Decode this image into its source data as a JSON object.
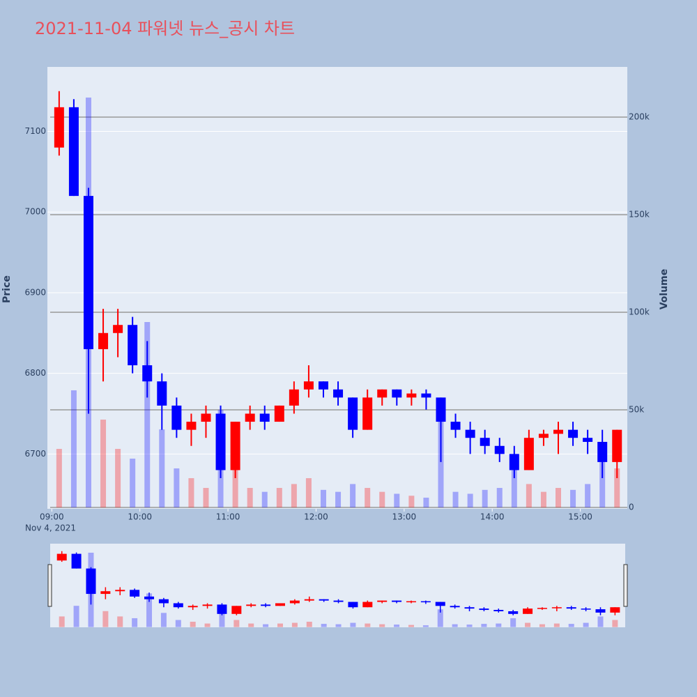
{
  "chart_data": {
    "type": "candlestick",
    "title": "2021-11-04 파워넷 뉴스_공시 차트",
    "y_title": "Price",
    "y2_title": "Volume",
    "x_date_label": "Nov 4, 2021",
    "increasing_color": "#ff0000",
    "decreasing_color": "#0000ff",
    "x": [
      "2021-11-04 09:00",
      "2021-11-04 09:10",
      "2021-11-04 09:20",
      "2021-11-04 09:30",
      "2021-11-04 09:40",
      "2021-11-04 09:50",
      "2021-11-04 10:00",
      "2021-11-04 10:10",
      "2021-11-04 10:20",
      "2021-11-04 10:30",
      "2021-11-04 10:40",
      "2021-11-04 10:50",
      "2021-11-04 11:00",
      "2021-11-04 11:10",
      "2021-11-04 11:20",
      "2021-11-04 11:30",
      "2021-11-04 11:40",
      "2021-11-04 11:50",
      "2021-11-04 12:00",
      "2021-11-04 12:10",
      "2021-11-04 12:20",
      "2021-11-04 12:30",
      "2021-11-04 12:40",
      "2021-11-04 12:50",
      "2021-11-04 13:00",
      "2021-11-04 13:10",
      "2021-11-04 13:20",
      "2021-11-04 13:30",
      "2021-11-04 13:40",
      "2021-11-04 13:50",
      "2021-11-04 14:00",
      "2021-11-04 14:10",
      "2021-11-04 14:20",
      "2021-11-04 14:30",
      "2021-11-04 14:40",
      "2021-11-04 14:50",
      "2021-11-04 15:00",
      "2021-11-04 15:10",
      "2021-11-04 15:20"
    ],
    "open": [
      7080,
      7130,
      7020,
      6830,
      6850,
      6860,
      6810,
      6790,
      6760,
      6730,
      6740,
      6750,
      6680,
      6740,
      6750,
      6740,
      6760,
      6780,
      6790,
      6780,
      6770,
      6730,
      6770,
      6780,
      6770,
      6775,
      6770,
      6740,
      6730,
      6720,
      6710,
      6700,
      6680,
      6720,
      6725,
      6730,
      6720,
      6715,
      6690
    ],
    "high": [
      7150,
      7140,
      7030,
      6880,
      6880,
      6870,
      6840,
      6800,
      6770,
      6750,
      6760,
      6760,
      6740,
      6760,
      6760,
      6760,
      6790,
      6810,
      6790,
      6790,
      6770,
      6780,
      6780,
      6780,
      6780,
      6780,
      6770,
      6750,
      6740,
      6730,
      6720,
      6710,
      6730,
      6730,
      6740,
      6740,
      6730,
      6730,
      6730
    ],
    "low": [
      7070,
      7020,
      6750,
      6790,
      6820,
      6800,
      6770,
      6730,
      6720,
      6710,
      6720,
      6670,
      6670,
      6730,
      6730,
      6740,
      6750,
      6770,
      6770,
      6760,
      6720,
      6730,
      6760,
      6760,
      6760,
      6755,
      6690,
      6720,
      6700,
      6700,
      6690,
      6670,
      6680,
      6710,
      6700,
      6710,
      6700,
      6670,
      6670
    ],
    "close": [
      7130,
      7020,
      6830,
      6850,
      6860,
      6810,
      6790,
      6760,
      6730,
      6740,
      6750,
      6680,
      6740,
      6750,
      6740,
      6760,
      6780,
      6790,
      6780,
      6770,
      6730,
      6770,
      6780,
      6770,
      6775,
      6770,
      6740,
      6730,
      6720,
      6710,
      6700,
      6680,
      6720,
      6725,
      6730,
      6720,
      6715,
      6690,
      6730
    ],
    "volume": [
      30000,
      60000,
      210000,
      45000,
      30000,
      25000,
      95000,
      40000,
      20000,
      15000,
      10000,
      50000,
      20000,
      10000,
      8000,
      10000,
      12000,
      15000,
      9000,
      8000,
      12000,
      10000,
      8000,
      7000,
      6000,
      5000,
      50000,
      8000,
      7000,
      9000,
      10000,
      25000,
      12000,
      8000,
      10000,
      9000,
      12000,
      30000,
      20000
    ],
    "ylim": [
      6632,
      7180
    ],
    "yticks": [
      6700,
      6800,
      6900,
      7000,
      7100
    ],
    "y2lim": [
      -700,
      225700
    ],
    "y2ticks": [
      0,
      {
        "value": 50000,
        "label": "50k"
      },
      {
        "value": 100000,
        "label": "100k"
      },
      {
        "value": 150000,
        "label": "150k"
      },
      {
        "value": 200000,
        "label": "200k"
      }
    ],
    "xlim": [
      "2021-11-04 08:57",
      "2021-11-04 15:32"
    ],
    "xticks": [
      {
        "value": "2021-11-04 09:00",
        "label": "09:00"
      },
      {
        "value": "2021-11-04 10:00",
        "label": "10:00"
      },
      {
        "value": "2021-11-04 11:00",
        "label": "11:00"
      },
      {
        "value": "2021-11-04 12:00",
        "label": "12:00"
      },
      {
        "value": "2021-11-04 13:00",
        "label": "13:00"
      },
      {
        "value": "2021-11-04 14:00",
        "label": "14:00"
      },
      {
        "value": "2021-11-04 15:00",
        "label": "15:00"
      }
    ]
  }
}
